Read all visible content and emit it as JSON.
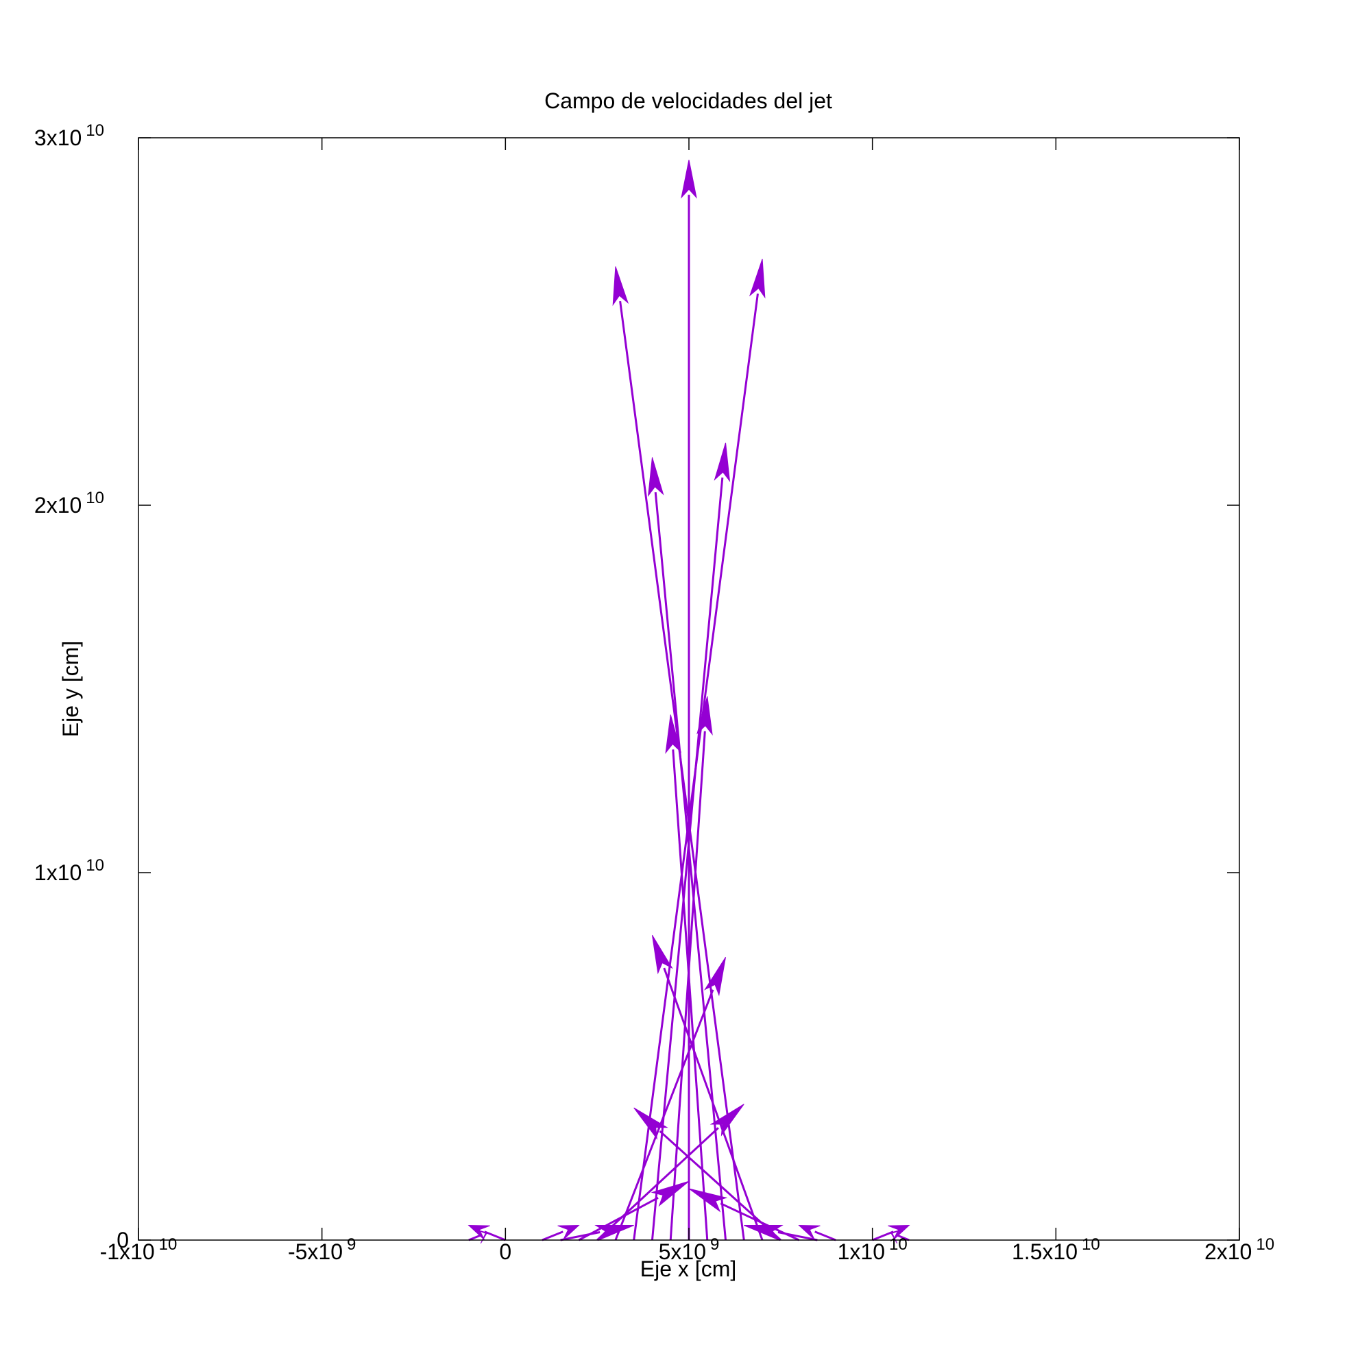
{
  "chart_data": {
    "type": "quiver",
    "title": "Campo de velocidades del jet",
    "xlabel": "Eje x [cm]",
    "ylabel": "Eje y [cm]",
    "xlim": [
      -10000000000,
      20000000000
    ],
    "ylim": [
      0,
      30000000000
    ],
    "grid": false,
    "legend": "none",
    "colors": {
      "arrows": "#9400d3",
      "frame": "#000000"
    },
    "x_ticks": [
      {
        "value": -10000000000,
        "base": "-1x10",
        "exp": "10"
      },
      {
        "value": -5000000000,
        "base": "-5x10",
        "exp": "9"
      },
      {
        "value": 0,
        "base": "0",
        "exp": ""
      },
      {
        "value": 5000000000,
        "base": "5x10",
        "exp": "9"
      },
      {
        "value": 10000000000,
        "base": "1x10",
        "exp": "10"
      },
      {
        "value": 15000000000,
        "base": "1.5x10",
        "exp": "10"
      },
      {
        "value": 20000000000,
        "base": "2x10",
        "exp": "10"
      }
    ],
    "y_ticks": [
      {
        "value": 0,
        "base": "0",
        "exp": ""
      },
      {
        "value": 10000000000,
        "base": "1x10",
        "exp": "10"
      },
      {
        "value": 20000000000,
        "base": "2x10",
        "exp": "10"
      },
      {
        "value": 30000000000,
        "base": "3x10",
        "exp": "10"
      }
    ],
    "arrows": [
      {
        "x": 5000000000,
        "y": 0,
        "dx": 0,
        "dy": 29400000000
      },
      {
        "x": 4500000000,
        "y": 0,
        "dx": 1000000000,
        "dy": 14800000000
      },
      {
        "x": 5500000000,
        "y": 0,
        "dx": -1000000000,
        "dy": 14300000000
      },
      {
        "x": 6000000000,
        "y": 0,
        "dx": -2000000000,
        "dy": 21300000000
      },
      {
        "x": 4000000000,
        "y": 0,
        "dx": 2000000000,
        "dy": 21700000000
      },
      {
        "x": 6500000000,
        "y": 0,
        "dx": -3500000000,
        "dy": 26500000000
      },
      {
        "x": 3500000000,
        "y": 0,
        "dx": 3500000000,
        "dy": 26700000000
      },
      {
        "x": 7000000000,
        "y": 0,
        "dx": -3000000000,
        "dy": 8300000000
      },
      {
        "x": 3000000000,
        "y": 0,
        "dx": 3000000000,
        "dy": 7700000000
      },
      {
        "x": 2500000000,
        "y": 0,
        "dx": 4000000000,
        "dy": 3700000000
      },
      {
        "x": 7500000000,
        "y": 0,
        "dx": -4000000000,
        "dy": 3600000000
      },
      {
        "x": 2000000000,
        "y": 0,
        "dx": 3000000000,
        "dy": 1600000000
      },
      {
        "x": 8000000000,
        "y": 0,
        "dx": -3000000000,
        "dy": 1400000000
      },
      {
        "x": 1500000000,
        "y": 0,
        "dx": 2000000000,
        "dy": 400000000
      },
      {
        "x": 8500000000,
        "y": 0,
        "dx": -2000000000,
        "dy": 400000000
      },
      {
        "x": 1000000000,
        "y": 0,
        "dx": 1000000000,
        "dy": 400000000
      },
      {
        "x": 9000000000,
        "y": 0,
        "dx": -1000000000,
        "dy": 400000000
      },
      {
        "x": 0,
        "y": 0,
        "dx": -1000000000,
        "dy": 400000000
      },
      {
        "x": 10000000000,
        "y": 0,
        "dx": 1000000000,
        "dy": 400000000
      },
      {
        "x": -1000000000,
        "y": 0,
        "dx": 500000000,
        "dy": 200000000
      },
      {
        "x": 11000000000,
        "y": 0,
        "dx": -500000000,
        "dy": 200000000
      }
    ]
  }
}
